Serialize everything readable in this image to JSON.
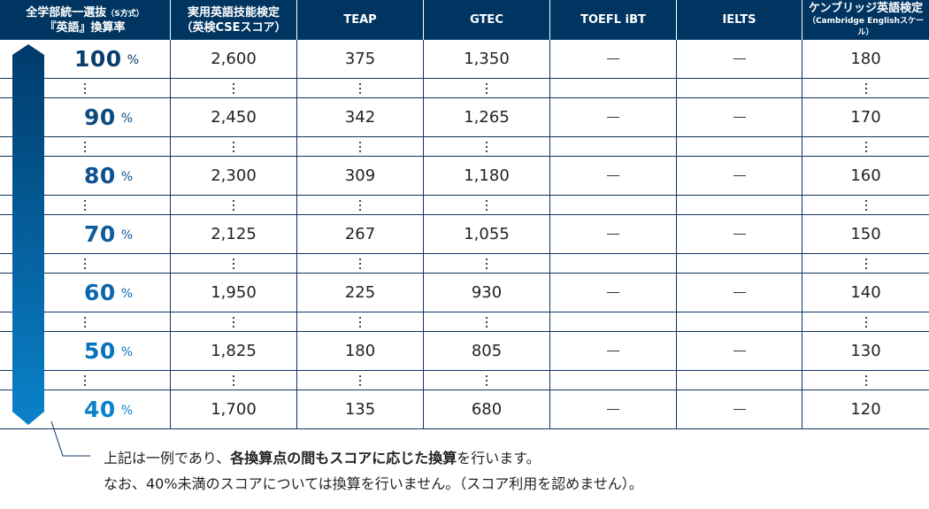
{
  "header": {
    "col0": {
      "line1": "全学部統一選抜",
      "line1_small": "（S方式）",
      "line2": "『英語』換算率"
    },
    "col1": {
      "line1": "実用英語技能検定",
      "line2": "（英検CSEスコア）"
    },
    "col2": {
      "line1": "TEAP"
    },
    "col3": {
      "line1": "GTEC"
    },
    "col4": {
      "line1": "TOEFL iBT"
    },
    "col5": {
      "line1": "IELTS"
    },
    "col6": {
      "line1": "ケンブリッジ英語検定",
      "line2": "（Cambridge Englishスケール）"
    }
  },
  "percent_symbol": "%",
  "dash": "—",
  "rows": [
    {
      "rate": "100",
      "color": "#0a3d6e",
      "eiken": "2,600",
      "teap": "375",
      "gtec": "1,350",
      "toefl": "—",
      "ielts": "—",
      "cambridge": "180"
    },
    {
      "rate": "90",
      "color": "#0c4a80",
      "eiken": "2,450",
      "teap": "342",
      "gtec": "1,265",
      "toefl": "—",
      "ielts": "—",
      "cambridge": "170"
    },
    {
      "rate": "80",
      "color": "#0d528f",
      "eiken": "2,300",
      "teap": "309",
      "gtec": "1,180",
      "toefl": "—",
      "ielts": "—",
      "cambridge": "160"
    },
    {
      "rate": "70",
      "color": "#0d5c9e",
      "eiken": "2,125",
      "teap": "267",
      "gtec": "1,055",
      "toefl": "—",
      "ielts": "—",
      "cambridge": "150"
    },
    {
      "rate": "60",
      "color": "#0c66ad",
      "eiken": "1,950",
      "teap": "225",
      "gtec": "930",
      "toefl": "—",
      "ielts": "—",
      "cambridge": "140"
    },
    {
      "rate": "50",
      "color": "#0a72bd",
      "eiken": "1,825",
      "teap": "180",
      "gtec": "805",
      "toefl": "—",
      "ielts": "—",
      "cambridge": "130"
    },
    {
      "rate": "40",
      "color": "#0a82ca",
      "eiken": "1,700",
      "teap": "135",
      "gtec": "680",
      "toefl": "—",
      "ielts": "—",
      "cambridge": "120"
    }
  ],
  "note": {
    "line1_pre": "上記は一例であり、",
    "line1_bold": "各換算点の間もスコアに応じた換算",
    "line1_post": "を行います。",
    "line2": "なお、40%未満のスコアについては換算を行いません。（スコア利用を認めません）。"
  },
  "colors": {
    "header_bg": "#003562",
    "grid_line": "#0d3560",
    "arrow_top": "#003a6b",
    "arrow_bottom": "#0a82ca"
  }
}
